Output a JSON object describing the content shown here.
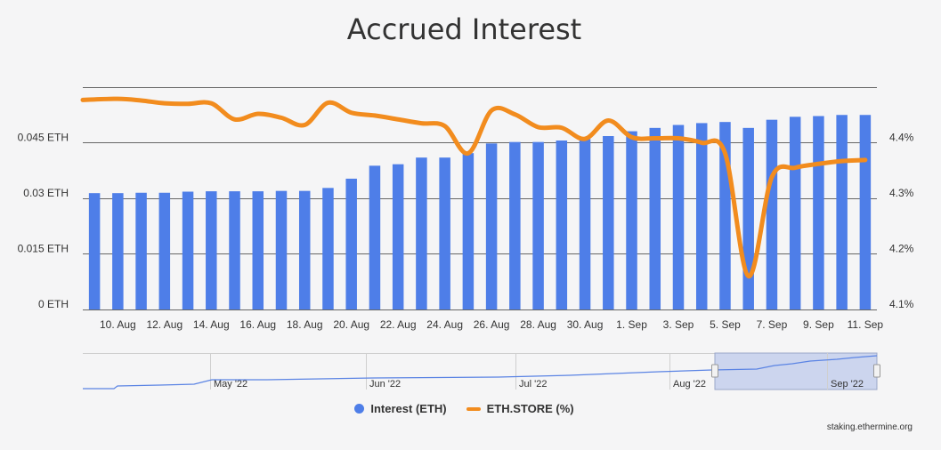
{
  "title": "Accrued Interest",
  "credit": "staking.ethermine.org",
  "colors": {
    "bar": "#4e7ee8",
    "line": "#f28c1e",
    "grid": "#666666",
    "text": "#333333",
    "navigator_fill": "#ccd5ee"
  },
  "legend": [
    {
      "label": "Interest (ETH)",
      "color": "#4e7ee8",
      "shape": "circle"
    },
    {
      "label": "ETH.STORE (%)",
      "color": "#f28c1e",
      "shape": "line"
    }
  ],
  "chart_data": {
    "type": "bar",
    "title": "Accrued Interest",
    "dates": [
      "9 Aug",
      "10 Aug",
      "11 Aug",
      "12 Aug",
      "13 Aug",
      "14 Aug",
      "15 Aug",
      "16 Aug",
      "17 Aug",
      "18 Aug",
      "19 Aug",
      "20 Aug",
      "21 Aug",
      "22 Aug",
      "23 Aug",
      "24 Aug",
      "25 Aug",
      "26 Aug",
      "27 Aug",
      "28 Aug",
      "29 Aug",
      "30 Aug",
      "31 Aug",
      "1 Sep",
      "2 Sep",
      "3 Sep",
      "4 Sep",
      "5 Sep",
      "6 Sep",
      "7 Sep",
      "8 Sep",
      "9 Sep",
      "10 Sep",
      "11 Sep"
    ],
    "x_tick_labels": [
      "10. Aug",
      "12. Aug",
      "14. Aug",
      "16. Aug",
      "18. Aug",
      "20. Aug",
      "22. Aug",
      "24. Aug",
      "26. Aug",
      "28. Aug",
      "30. Aug",
      "1. Sep",
      "3. Sep",
      "5. Sep",
      "7. Sep",
      "9. Sep",
      "11. Sep"
    ],
    "y_left": {
      "ticks": [
        "0 ETH",
        "0.015 ETH",
        "0.03 ETH",
        "0.045 ETH"
      ],
      "range": [
        0,
        0.06
      ]
    },
    "y_right": {
      "ticks": [
        "4.1%",
        "4.2%",
        "4.3%",
        "4.4%"
      ],
      "range": [
        4.1,
        4.5
      ]
    },
    "series": [
      {
        "name": "Interest (ETH)",
        "axis": "left",
        "values": [
          0.0314,
          0.0314,
          0.0315,
          0.0315,
          0.0318,
          0.0319,
          0.0319,
          0.0319,
          0.032,
          0.032,
          0.0328,
          0.0353,
          0.0388,
          0.0392,
          0.041,
          0.041,
          0.0422,
          0.0448,
          0.0452,
          0.0452,
          0.0456,
          0.046,
          0.0468,
          0.0481,
          0.049,
          0.0498,
          0.0503,
          0.0506,
          0.049,
          0.0512,
          0.052,
          0.0522,
          0.0525,
          0.0525
        ]
      },
      {
        "name": "ETH.STORE (%)",
        "axis": "right",
        "values": [
          4.477,
          4.479,
          4.476,
          4.471,
          4.47,
          4.471,
          4.442,
          4.452,
          4.445,
          4.432,
          4.472,
          4.454,
          4.449,
          4.442,
          4.435,
          4.43,
          4.381,
          4.458,
          4.451,
          4.428,
          4.427,
          4.407,
          4.44,
          4.41,
          4.408,
          4.408,
          4.4,
          4.381,
          4.16,
          4.338,
          4.355,
          4.362,
          4.367,
          4.369
        ]
      }
    ],
    "navigator": {
      "labels": [
        "May '22",
        "Jun '22",
        "Jul '22",
        "Aug '22",
        "Sep '22"
      ]
    }
  }
}
